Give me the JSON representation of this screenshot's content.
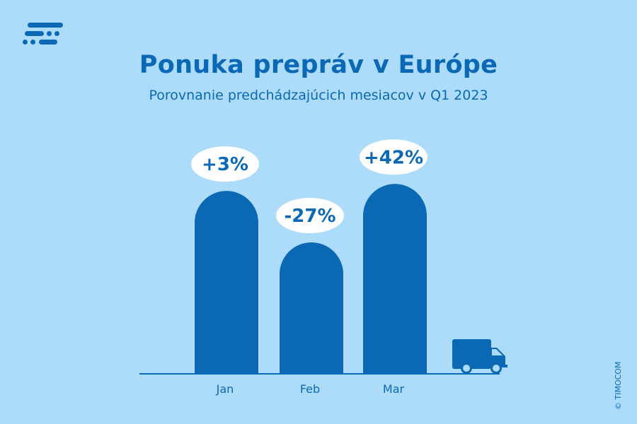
{
  "header": {
    "title": "Ponuka prepráv v Európe",
    "subtitle": "Porovnanie predchádzajúcich mesiacov v Q1 2023"
  },
  "footer": {
    "copyright": "© TIMOCOM"
  },
  "colors": {
    "background": "#addcfa",
    "accent": "#0a68b4",
    "bubble": "#ffffff"
  },
  "icons": {
    "logo": "timocom-logo-icon",
    "truck": "truck-icon"
  },
  "chart_data": {
    "type": "bar",
    "categories": [
      "Jan",
      "Feb",
      "Mar"
    ],
    "values": [
      3,
      -27,
      42
    ],
    "data_labels": [
      "+3%",
      "-27%",
      "+42%"
    ],
    "title": "Ponuka prepráv v Európe",
    "subtitle": "Porovnanie predchádzajúcich mesiacov v Q1 2023",
    "xlabel": "",
    "ylabel": "",
    "grid": false,
    "legend": "none"
  }
}
